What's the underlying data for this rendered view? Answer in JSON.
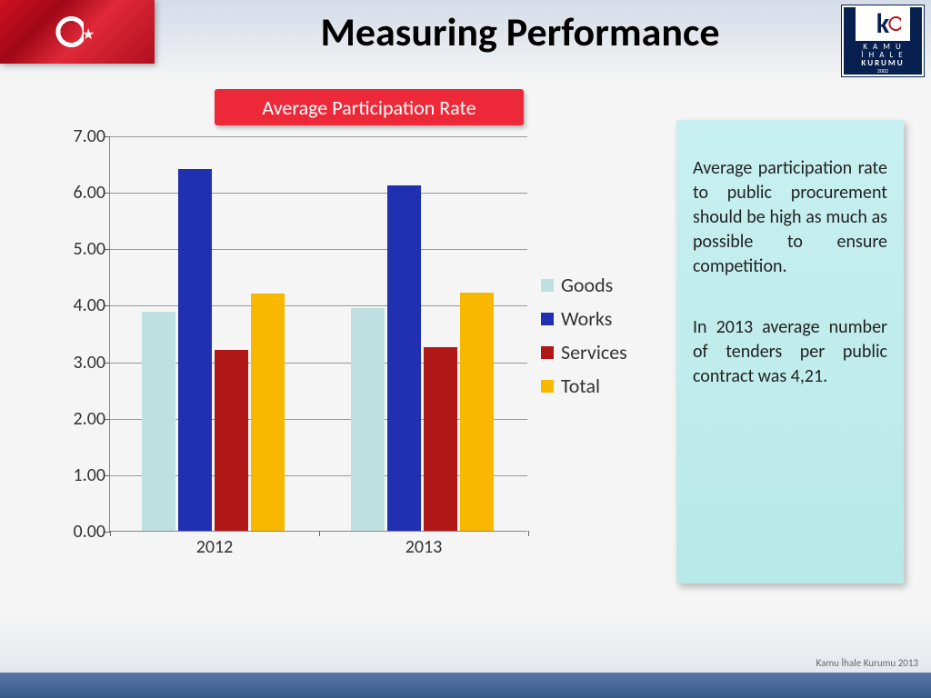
{
  "slide": {
    "title": "Measuring Performance",
    "logo": {
      "line1": "K A M U",
      "line2": "İ H A L E",
      "line3": "KURUMU",
      "year": "2002",
      "k": "k"
    },
    "footer_text": "Kamu İhale Kurumu 2013"
  },
  "chart": {
    "type": "bar",
    "title": "Average Participation Rate",
    "title_bg": "#ed2939",
    "title_color": "#ffffff",
    "categories": [
      "2012",
      "2013"
    ],
    "series": [
      {
        "name": "Goods",
        "color": "#bfe0e0",
        "values": [
          3.88,
          3.95
        ]
      },
      {
        "name": "Works",
        "color": "#2030b0",
        "values": [
          6.4,
          6.12
        ]
      },
      {
        "name": "Services",
        "color": "#b01818",
        "values": [
          3.2,
          3.25
        ]
      },
      {
        "name": "Total",
        "color": "#f8b800",
        "values": [
          4.2,
          4.21
        ]
      }
    ],
    "ylim": [
      0,
      7
    ],
    "ytick_step": 1,
    "ytick_decimals": 2,
    "grid_color": "#999999",
    "axis_label_fontsize": 20,
    "legend_fontsize": 22,
    "bar_group_width": 0.7
  },
  "info": {
    "para1": "Average participation rate to public procurement should be high as much as possible to ensure competition.",
    "para2": "In 2013 average number of tenders per public contract was 4,21."
  }
}
